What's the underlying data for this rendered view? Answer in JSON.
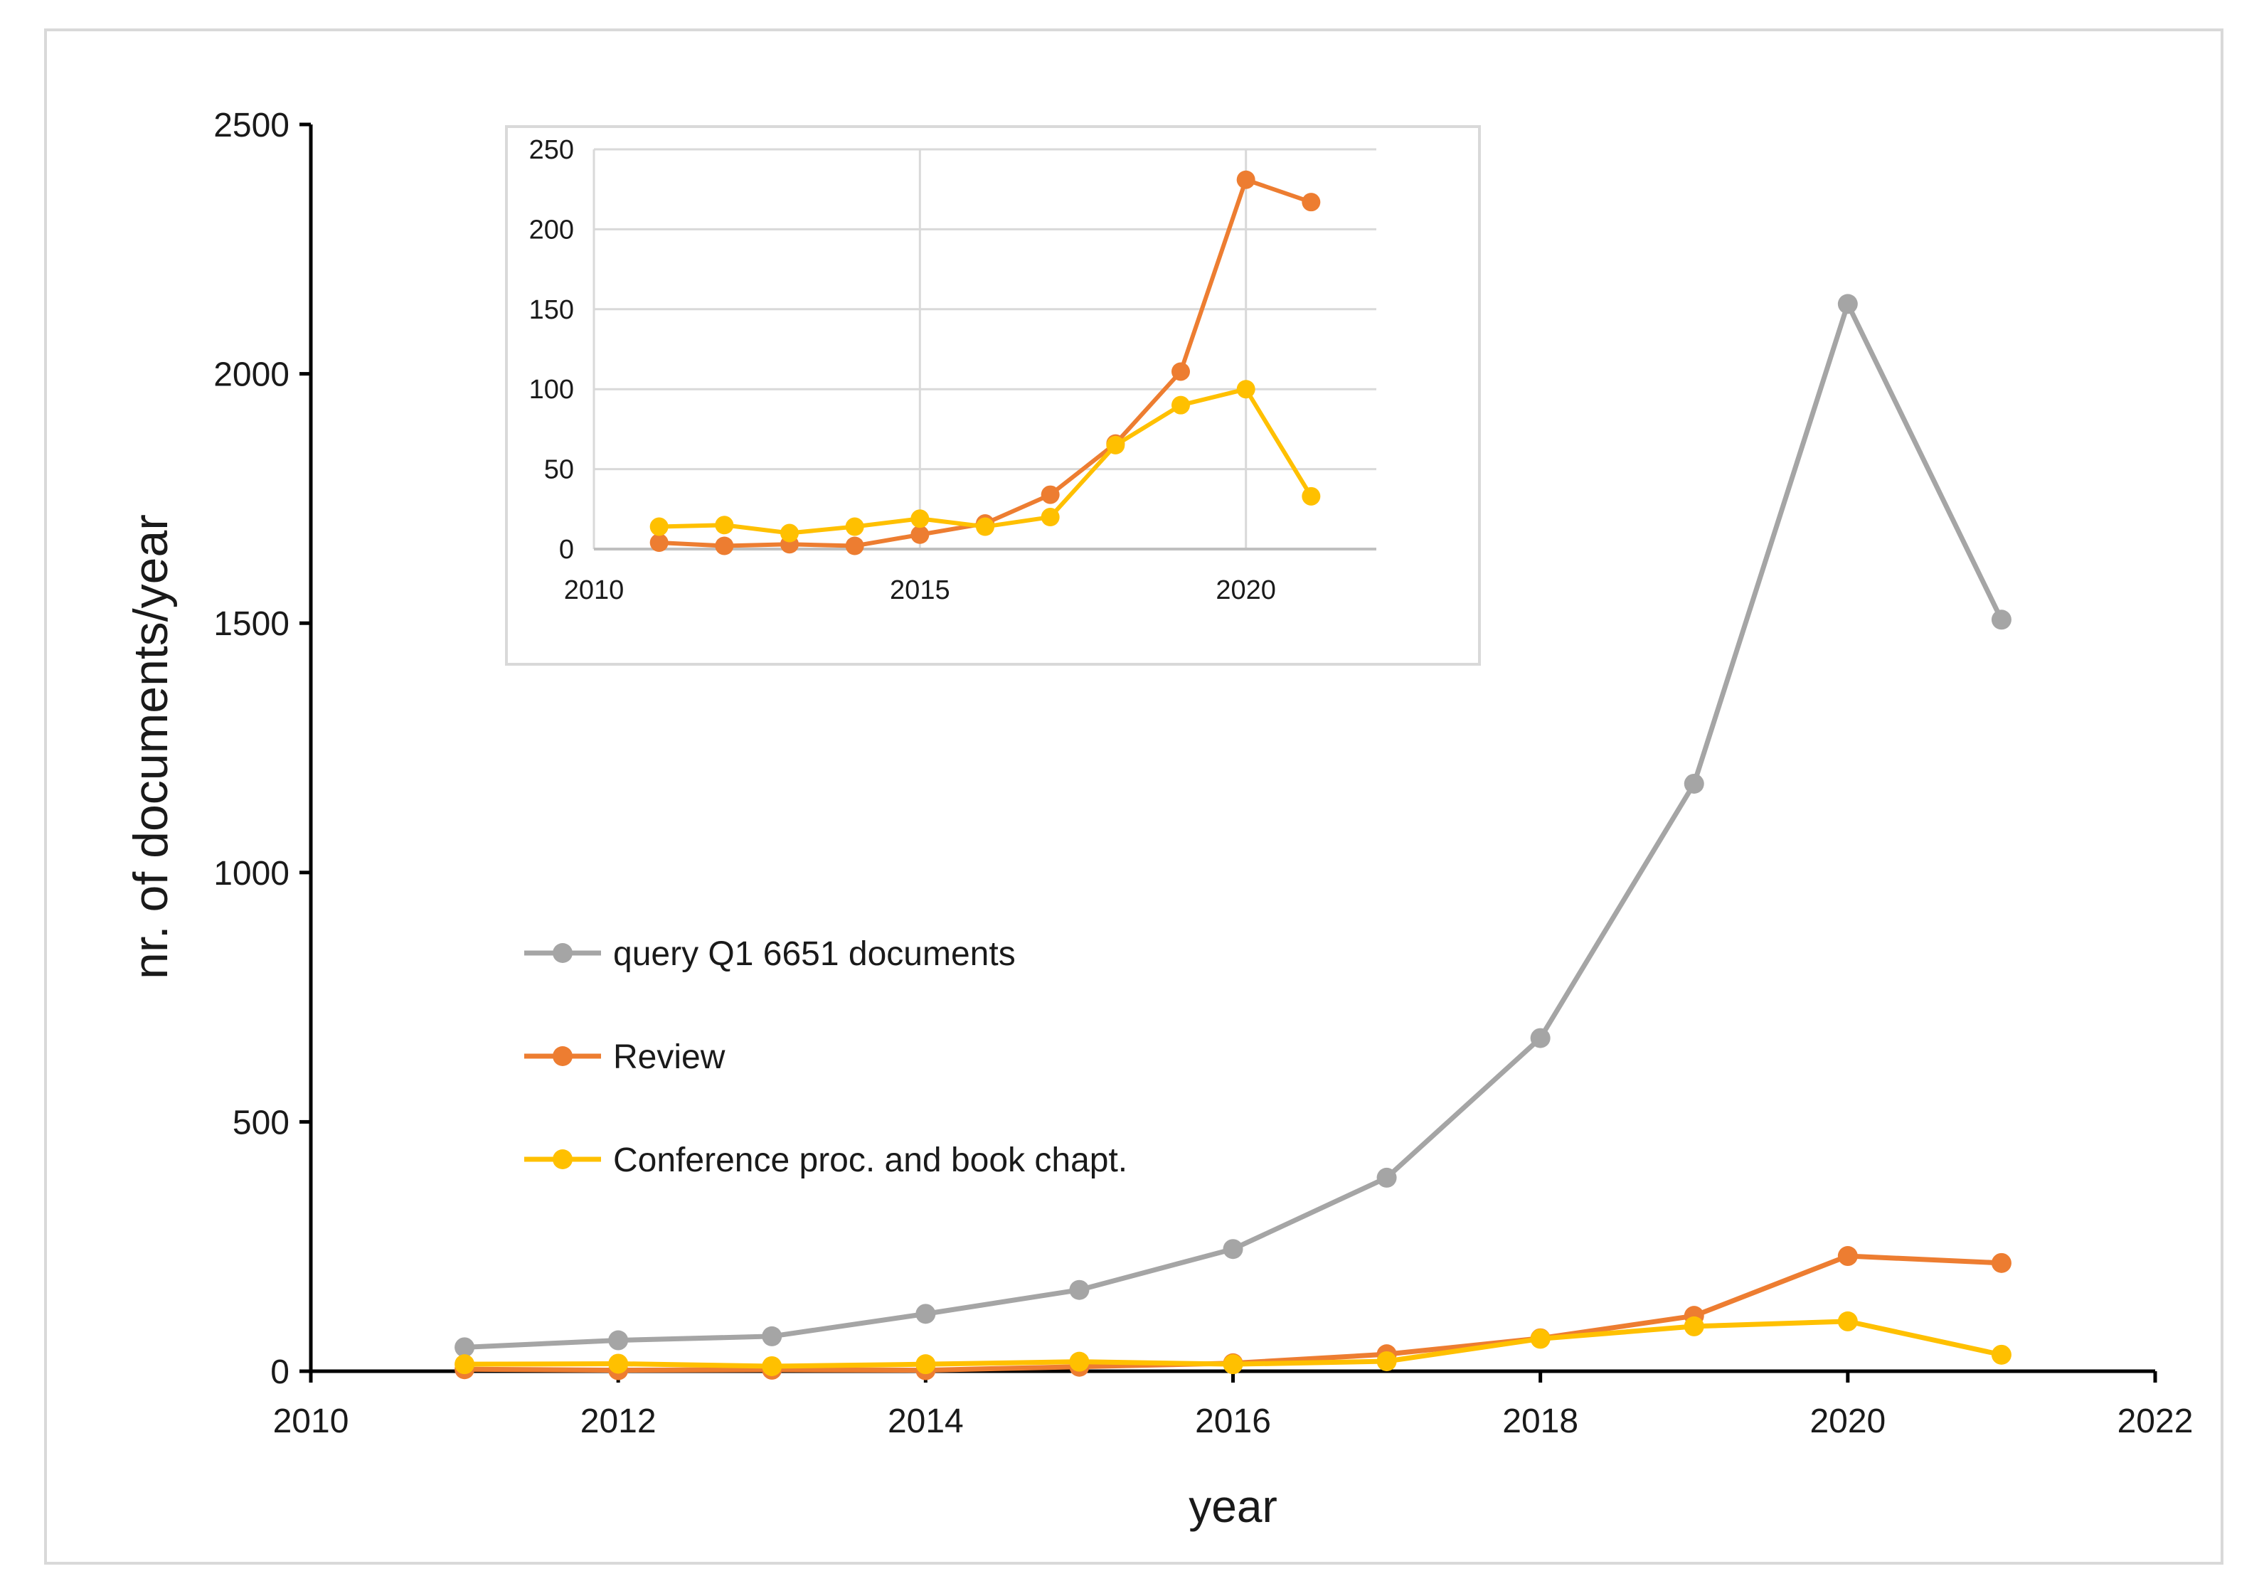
{
  "chart_data": [
    {
      "id": "main",
      "type": "line",
      "xlabel": "year",
      "ylabel": "nr. of documents/year",
      "xlim": [
        2010,
        2022
      ],
      "ylim": [
        0,
        2500
      ],
      "x_ticks": [
        2010,
        2012,
        2014,
        2016,
        2018,
        2020,
        2022
      ],
      "y_ticks": [
        0,
        500,
        1000,
        1500,
        2000,
        2500
      ],
      "grid": false,
      "legend_position": "center-left",
      "x": [
        2011,
        2012,
        2013,
        2014,
        2015,
        2016,
        2017,
        2018,
        2019,
        2020,
        2021
      ],
      "series": [
        {
          "name": "query Q1 6651 documents",
          "color": "#a5a5a5",
          "values": [
            48,
            62,
            70,
            115,
            163,
            245,
            388,
            668,
            1178,
            2140,
            1507
          ]
        },
        {
          "name": "Review",
          "color": "#ed7d31",
          "values": [
            4,
            2,
            3,
            2,
            9,
            16,
            34,
            66,
            111,
            231,
            217
          ]
        },
        {
          "name": "Conference proc. and book chapt.",
          "color": "#ffc000",
          "values": [
            14,
            15,
            10,
            14,
            19,
            14,
            20,
            65,
            90,
            100,
            33
          ]
        }
      ]
    },
    {
      "id": "inset",
      "type": "line",
      "xlabel": "",
      "ylabel": "",
      "xlim": [
        2010,
        2022
      ],
      "ylim": [
        0,
        250
      ],
      "x_ticks": [
        2010,
        2015,
        2020
      ],
      "y_ticks": [
        0,
        50,
        100,
        150,
        200,
        250
      ],
      "grid": true,
      "x": [
        2011,
        2012,
        2013,
        2014,
        2015,
        2016,
        2017,
        2018,
        2019,
        2020,
        2021
      ],
      "series": [
        {
          "name": "Review",
          "color": "#ed7d31",
          "values": [
            4,
            2,
            3,
            2,
            9,
            16,
            34,
            66,
            111,
            231,
            217
          ]
        },
        {
          "name": "Conference proc. and book chapt.",
          "color": "#ffc000",
          "values": [
            14,
            15,
            10,
            14,
            19,
            14,
            20,
            65,
            90,
            100,
            33
          ]
        }
      ]
    }
  ]
}
